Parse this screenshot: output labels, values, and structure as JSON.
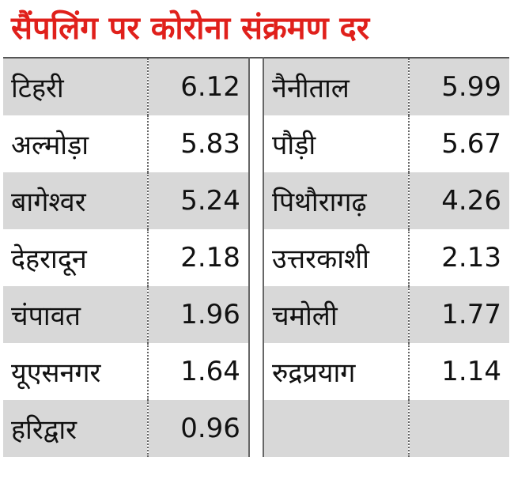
{
  "title": "सैंपलिंग पर कोरोना संक्रमण दर",
  "table": {
    "left": [
      {
        "district": "टिहरी",
        "rate": 6.12
      },
      {
        "district": "अल्मोड़ा",
        "rate": 5.83
      },
      {
        "district": "बागेश्वर",
        "rate": 5.24
      },
      {
        "district": "देहरादून",
        "rate": 2.18
      },
      {
        "district": "चंपावत",
        "rate": 1.96
      },
      {
        "district": "यूएसनगर",
        "rate": 1.64
      },
      {
        "district": "हरिद्वार",
        "rate": 0.96
      }
    ],
    "right": [
      {
        "district": "नैनीताल",
        "rate": 5.99
      },
      {
        "district": "पौड़ी",
        "rate": 5.67
      },
      {
        "district": "पिथौरागढ़",
        "rate": 4.26
      },
      {
        "district": "उत्तरकाशी",
        "rate": 2.13
      },
      {
        "district": "चमोली",
        "rate": 1.77
      },
      {
        "district": "रुद्रप्रयाग",
        "rate": 1.14
      }
    ]
  }
}
